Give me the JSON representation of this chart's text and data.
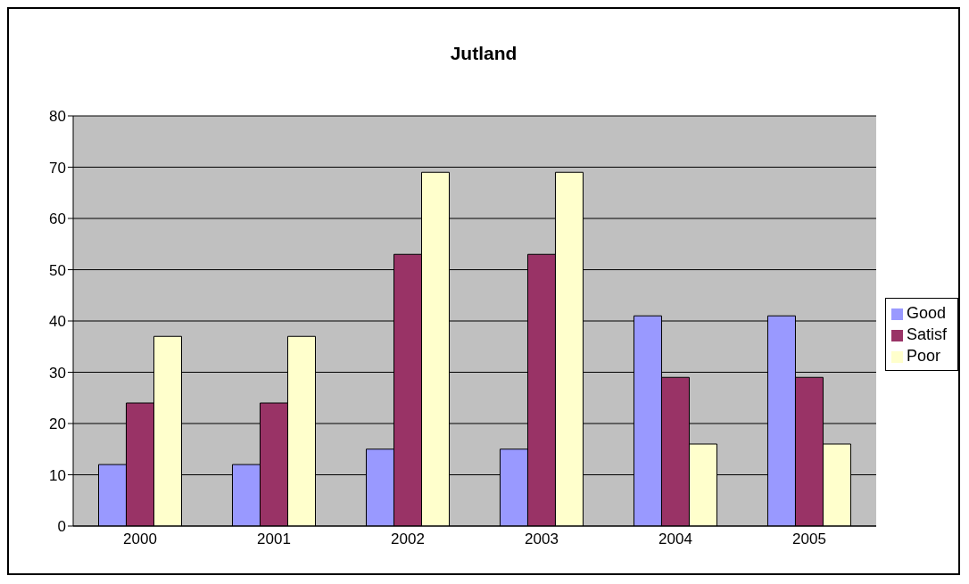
{
  "chart_data": {
    "type": "bar",
    "title": "Jutland",
    "categories": [
      "2000",
      "2001",
      "2002",
      "2003",
      "2004",
      "2005"
    ],
    "series": [
      {
        "name": "Good",
        "color": "#9999ff",
        "values": [
          12,
          12,
          15,
          15,
          41,
          41
        ]
      },
      {
        "name": "Satisf",
        "color": "#993366",
        "values": [
          24,
          24,
          53,
          53,
          29,
          29
        ]
      },
      {
        "name": "Poor",
        "color": "#ffffcc",
        "values": [
          37,
          37,
          69,
          69,
          16,
          16
        ]
      }
    ],
    "ylim": [
      0,
      80
    ],
    "yticks": [
      0,
      10,
      20,
      30,
      40,
      50,
      60,
      70,
      80
    ],
    "grid": "y",
    "legend": "right"
  }
}
